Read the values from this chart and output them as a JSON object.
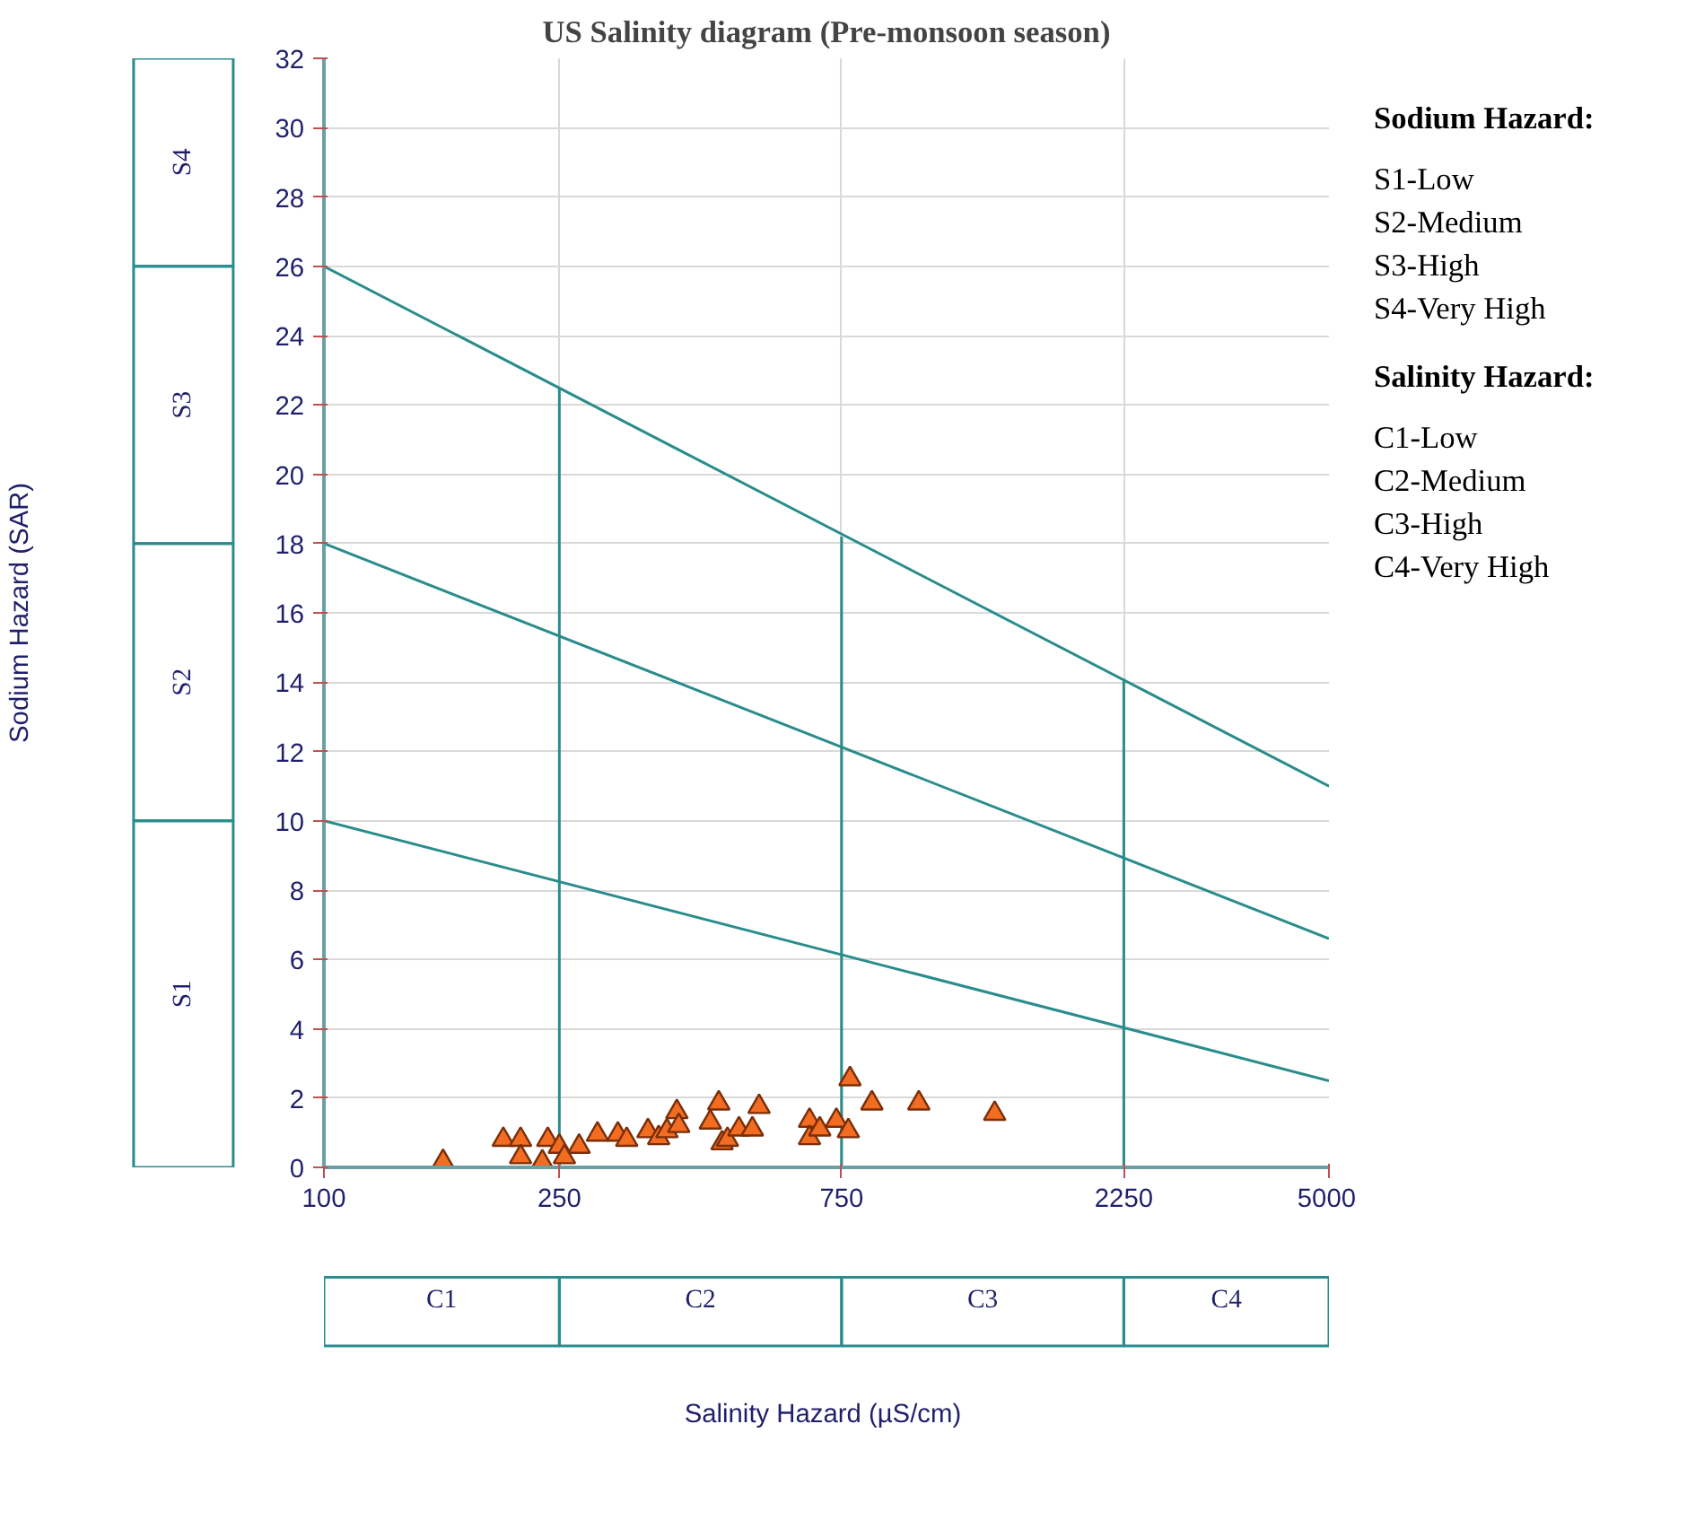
{
  "chart_data": {
    "type": "scatter",
    "title": "US Salinity diagram (Pre-monsoon season)",
    "log": "x",
    "grid": true,
    "xlim": [
      100,
      5000
    ],
    "xticks": [
      100,
      250,
      750,
      2250,
      5000
    ],
    "ylim": [
      0,
      32
    ],
    "yticks": [
      0,
      2,
      4,
      6,
      8,
      10,
      12,
      14,
      16,
      18,
      20,
      22,
      24,
      26,
      28,
      30,
      32
    ],
    "series": [
      {
        "marker": "triangle",
        "color": "#f26d21",
        "x": [
          159,
          201,
          215,
          215,
          234,
          239,
          250,
          255,
          270,
          290,
          314,
          325,
          353,
          368,
          380,
          395,
          398,
          450,
          465,
          471,
          481,
          503,
          530,
          544,
          662,
          662,
          689,
          735,
          770,
          775,
          844,
          1013,
          1361
        ],
        "values": [
          0.16,
          0.8,
          0.8,
          0.3,
          0.15,
          0.8,
          0.6,
          0.3,
          0.6,
          0.95,
          0.95,
          0.8,
          1.05,
          0.85,
          1.05,
          1.6,
          1.2,
          1.3,
          1.85,
          0.7,
          0.8,
          1.1,
          1.1,
          1.75,
          1.35,
          0.85,
          1.1,
          1.35,
          1.05,
          2.55,
          1.85,
          1.85,
          1.55
        ]
      },
      {
        "type": "line",
        "color": "#2a8c8c",
        "x": [
          100,
          5000
        ],
        "values": [
          10,
          2.5
        ]
      },
      {
        "type": "line",
        "color": "#2a8c8c",
        "x": [
          100,
          5000
        ],
        "values": [
          18,
          6.6
        ]
      },
      {
        "type": "line",
        "color": "#2a8c8c",
        "x": [
          100,
          5000
        ],
        "values": [
          26,
          11
        ]
      },
      {
        "type": "line",
        "color": "#2a8c8c",
        "x": [
          250,
          250
        ],
        "values": [
          0,
          22.5
        ]
      },
      {
        "type": "line",
        "color": "#2a8c8c",
        "x": [
          750,
          750
        ],
        "values": [
          0,
          18.2
        ]
      },
      {
        "type": "line",
        "color": "#2a8c8c",
        "x": [
          2250,
          2250
        ],
        "values": [
          0,
          14.1
        ]
      }
    ],
    "annotations": [
      "Sodium Hazard (SAR)",
      "Salinity Hazard  (µS/cm)",
      "Sodium Hazard:",
      "S1-Low",
      "S2-Medium",
      "S3-High",
      "S4-Very High",
      "Salinity Hazard:",
      "C1-Low",
      "C2-Medium",
      "C3-High",
      "C4-Very High",
      "S1",
      "S2",
      "S3",
      "S4",
      "C1",
      "C2",
      "C3",
      "C4"
    ]
  }
}
